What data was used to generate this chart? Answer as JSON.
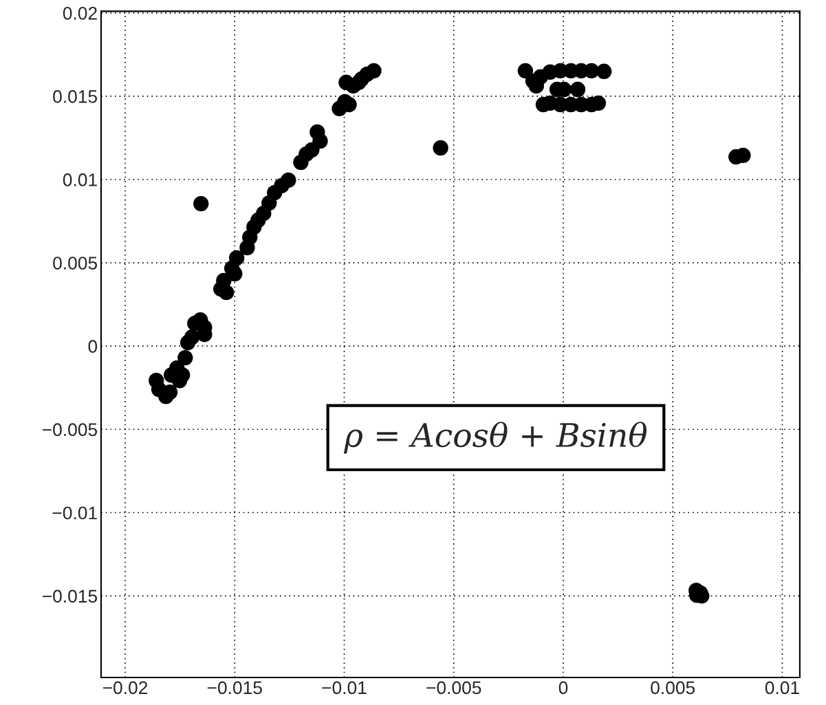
{
  "chart_data": {
    "type": "scatter",
    "x": [
      -0.01858,
      -0.01846,
      -0.01814,
      -0.01796,
      -0.01789,
      -0.01764,
      -0.01752,
      -0.01739,
      -0.01726,
      -0.01714,
      -0.01695,
      -0.01682,
      -0.01657,
      -0.01638,
      -0.01638,
      -0.01563,
      -0.0155,
      -0.01538,
      -0.01513,
      -0.015,
      -0.01491,
      -0.01443,
      -0.01431,
      -0.01412,
      -0.01393,
      -0.01368,
      -0.01343,
      -0.01318,
      -0.01286,
      -0.01255,
      -0.01198,
      -0.01173,
      -0.01148,
      -0.01123,
      -0.0111,
      -0.01022,
      -0.00997,
      -0.00978,
      -0.00991,
      -0.00959,
      -0.00934,
      -0.00921,
      -0.00896,
      -0.00865,
      -0.01654,
      -0.0056,
      0.00789,
      0.00821,
      0.00607,
      0.00626,
      0.00632,
      0.0061,
      -0.00173,
      -0.00138,
      -0.00104,
      -0.00123,
      -0.00091,
      -0.0006,
      -0.0006,
      -0.00013,
      0.00035,
      0.00082,
      0.00129,
      0.00186,
      -0.00028,
      3e-05,
      0.00066,
      -0.00013,
      0.00035,
      0.00082,
      0.00129,
      0.0016
    ],
    "values": [
      -0.00207,
      -0.0026,
      -0.00302,
      -0.00277,
      -0.00174,
      -0.00132,
      -0.00207,
      -0.00174,
      -0.0007,
      0.00021,
      0.00054,
      0.00136,
      0.00157,
      0.0007,
      0.00112,
      0.00343,
      0.00393,
      0.00322,
      0.00467,
      0.00434,
      0.00529,
      0.00591,
      0.00653,
      0.00715,
      0.00756,
      0.00797,
      0.00859,
      0.00921,
      0.00963,
      0.00996,
      0.01103,
      0.01153,
      0.01178,
      0.01285,
      0.01231,
      0.01426,
      0.01467,
      0.0145,
      0.01583,
      0.01562,
      0.01583,
      0.01603,
      0.01632,
      0.01653,
      0.00855,
      0.0119,
      0.01136,
      0.01145,
      -0.01467,
      -0.01483,
      -0.015,
      -0.01496,
      0.01653,
      0.01591,
      0.01616,
      0.01562,
      0.0145,
      0.01459,
      0.01645,
      0.01653,
      0.01653,
      0.01653,
      0.01653,
      0.01649,
      0.01541,
      0.01541,
      0.01541,
      0.0145,
      0.0145,
      0.0145,
      0.0145,
      0.01459
    ],
    "color": "#000000",
    "marker": "circle",
    "xlim": [
      -0.0211,
      0.0108
    ],
    "ylim": [
      -0.0199,
      0.0201
    ],
    "xticks": [
      {
        "value": -0.02,
        "label": "−0.02"
      },
      {
        "value": -0.015,
        "label": "−0.015"
      },
      {
        "value": -0.01,
        "label": "−0.01"
      },
      {
        "value": -0.005,
        "label": "−0.005"
      },
      0,
      0.005,
      0.01
    ],
    "yticks": [
      {
        "value": -0.015,
        "label": "−0.015"
      },
      {
        "value": -0.01,
        "label": "−0.01"
      },
      {
        "value": -0.005,
        "label": "−0.005"
      },
      0,
      0.005,
      0.01,
      0.015,
      0.02
    ],
    "grid": true,
    "annotations": [
      "ρ = Acosθ + Bsinθ"
    ]
  }
}
